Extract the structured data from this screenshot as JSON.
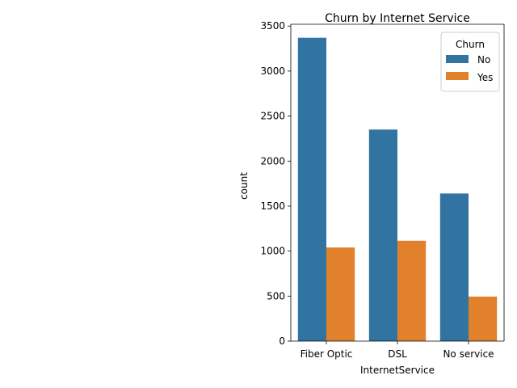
{
  "chart_data": {
    "type": "bar",
    "title": "Churn by Internet Service",
    "xlabel": "InternetService",
    "ylabel": "count",
    "categories": [
      "Fiber Optic",
      "DSL",
      "No service"
    ],
    "series": [
      {
        "name": "No",
        "values": [
          3370,
          2350,
          1640
        ],
        "color": "#3274a1"
      },
      {
        "name": "Yes",
        "values": [
          1040,
          1115,
          495
        ],
        "color": "#e1812c"
      }
    ],
    "ylim": [
      0,
      3520
    ],
    "yticks": [
      0,
      500,
      1000,
      1500,
      2000,
      2500,
      3000,
      3500
    ],
    "legend": {
      "title": "Churn",
      "placement": "top-right"
    },
    "grid": false
  }
}
